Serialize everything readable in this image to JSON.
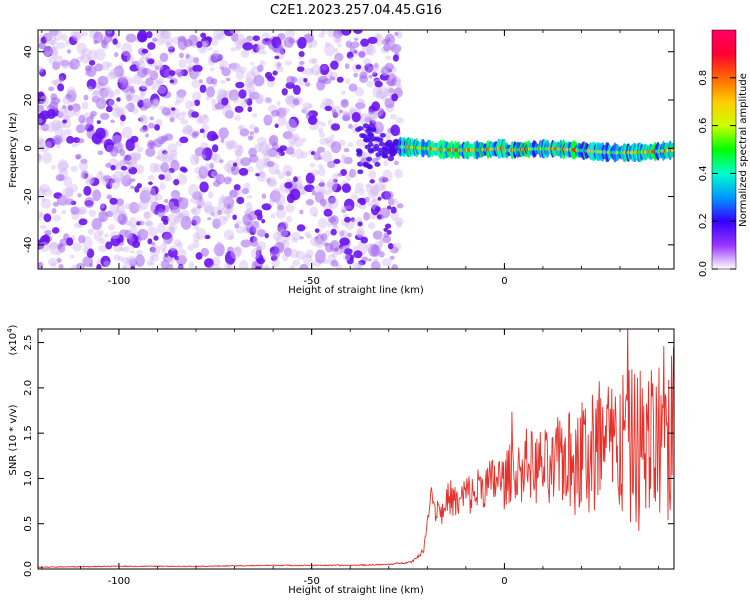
{
  "title": "C2E1.2023.257.04.45.G16",
  "chart_data": [
    {
      "type": "heatmap",
      "xlabel": "Height of straight line (km)",
      "ylabel": "Frequency (Hz)",
      "xlim": [
        -121,
        44
      ],
      "ylim": [
        -50,
        49
      ],
      "x_ticks": [
        -100,
        -50,
        0
      ],
      "y_ticks": [
        -40,
        -20,
        0,
        20,
        40
      ],
      "grid": false,
      "noise_region_x": [
        -121,
        -27
      ],
      "signal_band": {
        "x": [
          -27,
          44
        ],
        "frequency_hz": 0,
        "halfwidth_hz": 3
      },
      "colorbar": {
        "label": "Normalized spectral amplitude",
        "range": [
          0,
          1
        ],
        "ticks": [
          "0.0",
          "0.2",
          "0.4",
          "0.6",
          "0.8"
        ],
        "colors": [
          "#ffffff",
          "#9933ff",
          "#3300ff",
          "#0099ff",
          "#00ffcc",
          "#00ff00",
          "#ccff00",
          "#ffcc00",
          "#ff6600",
          "#ff0033",
          "#ff0066"
        ]
      }
    },
    {
      "type": "line",
      "xlabel": "Height of straight line (km)",
      "ylabel": "SNR (10 * v/v)",
      "y_multiplier_label": "(x10",
      "y_multiplier_exp": "4",
      "y_multiplier_close": ")",
      "xlim": [
        -121,
        44
      ],
      "ylim": [
        0,
        2.65
      ],
      "x_ticks": [
        -100,
        -50,
        0
      ],
      "y_ticks": [
        "0.0",
        "0.5",
        "1.0",
        "1.5",
        "2.0",
        "2.5"
      ],
      "y_tick_values": [
        0,
        0.5,
        1.0,
        1.5,
        2.0,
        2.5
      ],
      "series": [
        {
          "color": "#e8302a",
          "x": [
            -121,
            -100,
            -80,
            -60,
            -40,
            -30,
            -24,
            -21,
            -20,
            -19,
            -18,
            -17,
            -16,
            -15,
            -14,
            -12,
            -10,
            -8,
            -6,
            -4,
            -2,
            0,
            2,
            4,
            6,
            8,
            10,
            12,
            14,
            16,
            18,
            20,
            22,
            24,
            26,
            28,
            30,
            32,
            34,
            36,
            38,
            40,
            42,
            44
          ],
          "y": [
            0.02,
            0.03,
            0.03,
            0.04,
            0.04,
            0.05,
            0.08,
            0.2,
            0.5,
            0.9,
            0.65,
            0.7,
            0.6,
            0.75,
            0.8,
            0.7,
            0.85,
            0.8,
            0.95,
            0.9,
            1.0,
            0.95,
            1.1,
            1.05,
            1.2,
            1.1,
            1.15,
            1.0,
            1.2,
            1.25,
            1.1,
            1.3,
            1.2,
            1.35,
            1.25,
            1.3,
            1.4,
            1.3,
            1.35,
            1.3,
            1.4,
            1.35,
            1.45,
            1.5
          ],
          "amplitude": [
            0.005,
            0.005,
            0.005,
            0.006,
            0.006,
            0.008,
            0.01,
            0.03,
            0.05,
            0.08,
            0.15,
            0.15,
            0.15,
            0.18,
            0.2,
            0.2,
            0.22,
            0.25,
            0.25,
            0.3,
            0.3,
            0.3,
            0.35,
            0.35,
            0.4,
            0.4,
            0.45,
            0.45,
            0.5,
            0.55,
            0.6,
            0.7,
            0.75,
            0.8,
            0.8,
            0.85,
            0.85,
            0.9,
            0.9,
            0.95,
            0.95,
            1.0,
            1.0,
            1.0
          ]
        }
      ]
    }
  ]
}
